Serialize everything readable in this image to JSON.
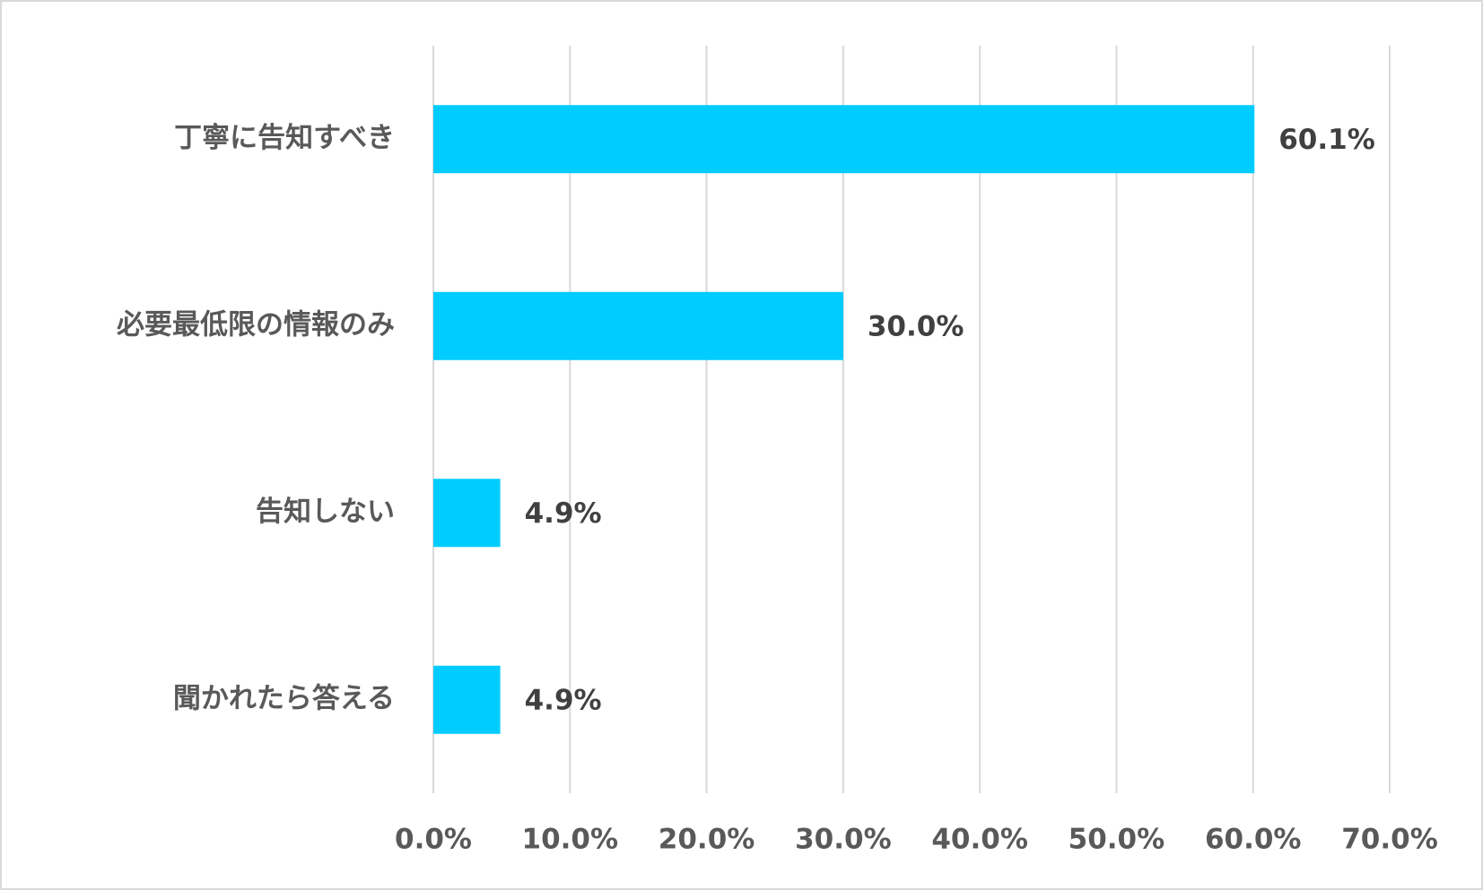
{
  "chart_data": {
    "type": "bar",
    "orientation": "horizontal",
    "categories": [
      "丁寧に告知すべき",
      "必要最低限の情報のみ",
      "告知しない",
      "聞かれたら答える"
    ],
    "values": [
      60.1,
      30.0,
      4.9,
      4.9
    ],
    "value_labels": [
      "60.1%",
      "30.0%",
      "4.9%",
      "4.9%"
    ],
    "color": "#00ccff",
    "xlim": [
      0,
      70
    ],
    "xticks": [
      {
        "value": 0,
        "label": "0.0%"
      },
      {
        "value": 10,
        "label": "10.0%"
      },
      {
        "value": 20,
        "label": "20.0%"
      },
      {
        "value": 30,
        "label": "30.0%"
      },
      {
        "value": 40,
        "label": "40.0%"
      },
      {
        "value": 50,
        "label": "50.0%"
      },
      {
        "value": 60,
        "label": "60.0%"
      },
      {
        "value": 70,
        "label": "70.0%"
      }
    ],
    "grid": true
  }
}
